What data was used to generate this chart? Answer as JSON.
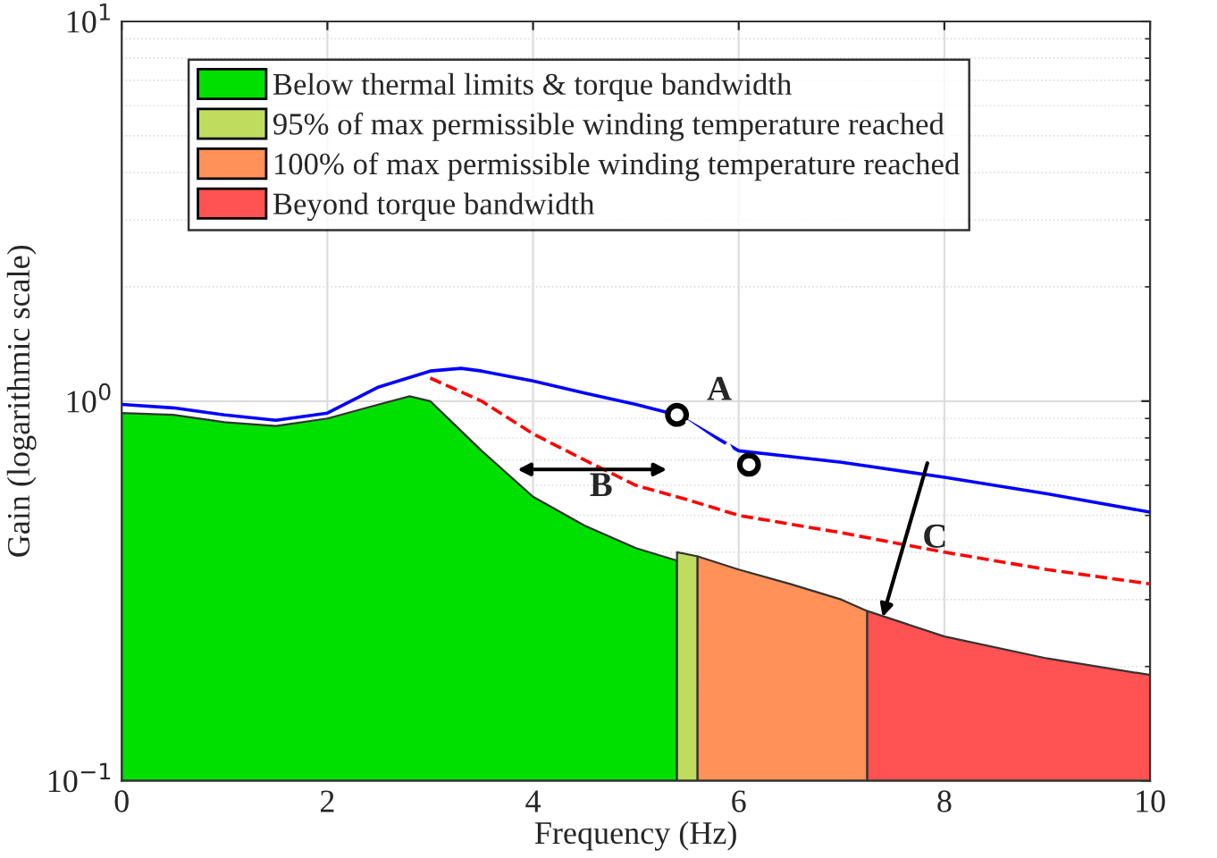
{
  "chart_data": {
    "type": "area",
    "xlabel": "Frequency (Hz)",
    "ylabel": "Gain (logarithmic scale)",
    "log": "y",
    "xlim": [
      0,
      10
    ],
    "ylim": [
      0.1,
      10
    ],
    "xticks": [
      0,
      2,
      4,
      6,
      8,
      10
    ],
    "yticks": [
      {
        "value": 0.1,
        "label": "10$^{−1}$"
      },
      {
        "value": 1,
        "label": "10$^{0}$"
      },
      {
        "value": 10,
        "label": "10$^{1}$"
      }
    ],
    "grid": true,
    "legend": "top left",
    "series": [
      {
        "name": "Below thermal limits & torque bandwidth",
        "color": "#00e000",
        "x": [
          0,
          0.5,
          1,
          1.5,
          2,
          2.5,
          2.8,
          3,
          3.5,
          4,
          4.5,
          5,
          5.4
        ],
        "values": [
          0.93,
          0.92,
          0.88,
          0.86,
          0.9,
          0.98,
          1.03,
          1.0,
          0.74,
          0.56,
          0.47,
          0.41,
          0.38
        ]
      },
      {
        "name": "95% of max permissible winding temperature reached",
        "color": "#bfdc5f",
        "x": [
          5.4,
          5.6
        ],
        "values": [
          0.4,
          0.39
        ]
      },
      {
        "name": "100% of max permissible winding temperature reached",
        "color": "#ff9159",
        "x": [
          5.6,
          6,
          6.5,
          7,
          7.25
        ],
        "values": [
          0.39,
          0.36,
          0.33,
          0.3,
          0.28
        ]
      },
      {
        "name": "Beyond torque bandwidth",
        "color": "#ff5252",
        "x": [
          7.25,
          8,
          9,
          10
        ],
        "values": [
          0.28,
          0.24,
          0.21,
          0.19
        ]
      },
      {
        "type": "line",
        "color": "#ff0000",
        "line_style": "dashed",
        "x": [
          3.0,
          3.5,
          4,
          4.5,
          5,
          5.5,
          6,
          7,
          8,
          9,
          10
        ],
        "values": [
          1.15,
          1.0,
          0.82,
          0.7,
          0.6,
          0.55,
          0.5,
          0.45,
          0.4,
          0.36,
          0.33
        ]
      },
      {
        "type": "line",
        "color": "#0000ff",
        "line_style": "solid",
        "x": [
          0,
          0.5,
          1,
          1.5,
          2,
          2.5,
          3,
          3.3,
          3.5,
          4,
          4.5,
          5,
          5.4,
          6,
          7,
          8,
          9,
          10
        ],
        "values": [
          0.98,
          0.96,
          0.92,
          0.89,
          0.93,
          1.09,
          1.2,
          1.22,
          1.2,
          1.13,
          1.05,
          0.98,
          0.92,
          0.74,
          0.69,
          0.63,
          0.57,
          0.51
        ]
      },
      {
        "type": "scatter",
        "color": "#ffffff",
        "marker": "circle",
        "x": [
          5.4,
          6.1
        ],
        "values": [
          0.92,
          0.68
        ]
      }
    ],
    "annotations": [
      {
        "text": "A",
        "x": 5.4,
        "y": 0.92
      },
      "B",
      {
        "text": "C",
        "x": 7.4,
        "y": 0.27
      }
    ]
  }
}
